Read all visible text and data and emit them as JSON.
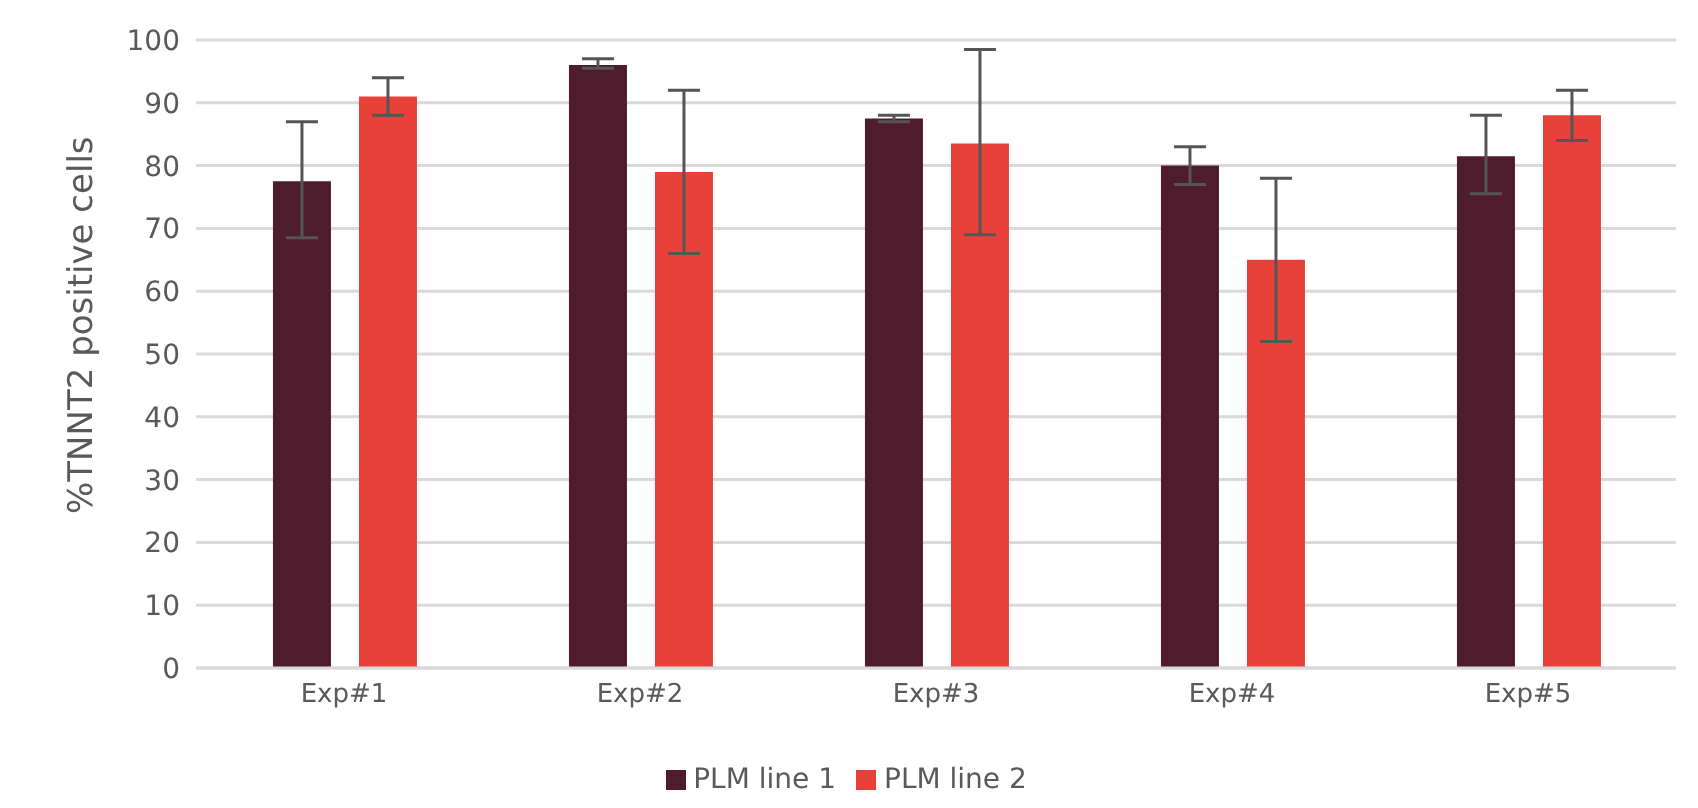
{
  "chart_data": {
    "type": "bar",
    "ylabel": "%TNNT2 positive cells",
    "categories": [
      "Exp#1",
      "Exp#2",
      "Exp#3",
      "Exp#4",
      "Exp#5"
    ],
    "series": [
      {
        "name": "PLM line 1",
        "color": "#4f1c2e",
        "values": [
          77.5,
          96,
          87.5,
          80,
          81.5
        ],
        "errors": [
          [
            68.5,
            87
          ],
          [
            95.5,
            97
          ],
          [
            87,
            88
          ],
          [
            77,
            83
          ],
          [
            75.5,
            88
          ]
        ]
      },
      {
        "name": "PLM line 2",
        "color": "#e8413a",
        "values": [
          91,
          79,
          83.5,
          65,
          88
        ],
        "errors": [
          [
            88,
            94
          ],
          [
            66,
            92
          ],
          [
            69,
            98.5
          ],
          [
            52,
            78
          ],
          [
            84,
            92
          ]
        ]
      }
    ],
    "ylim": [
      0,
      100
    ],
    "yticks": [
      0,
      10,
      20,
      30,
      40,
      50,
      60,
      70,
      80,
      90,
      100
    ],
    "grid": "y",
    "legend": "bottom"
  }
}
